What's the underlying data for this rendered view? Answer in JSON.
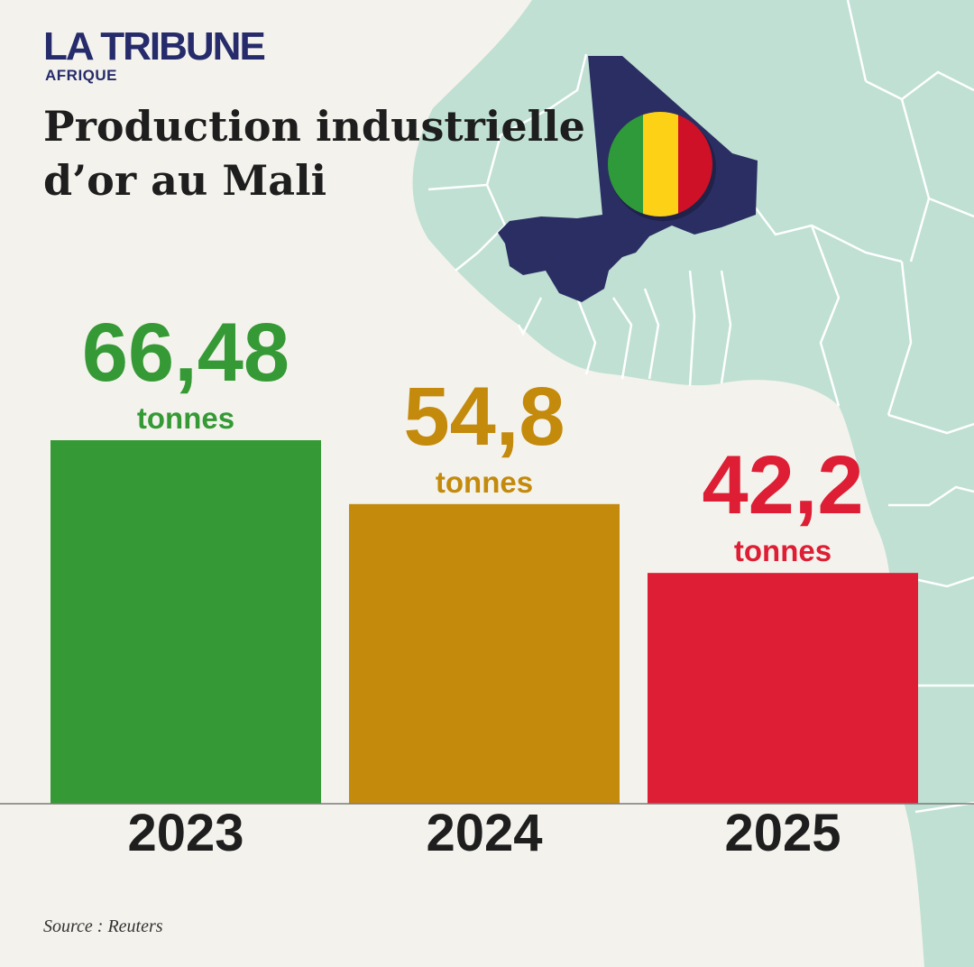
{
  "brand": {
    "name": "LA TRIBUNE",
    "subname": "AFRIQUE",
    "color": "#262b6b"
  },
  "source": "Source : Reuters",
  "colors": {
    "map_land": "#bfe0d3",
    "map_border": "#ffffff",
    "mali": "#2b2e63",
    "flag": [
      "#2f9a3a",
      "#fcd116",
      "#ce1126"
    ],
    "baseline": "#7a7a7a",
    "year_label": "#1e1e1e"
  },
  "chart_data": {
    "type": "bar",
    "title": "Production industrielle d’or au Mali",
    "xlabel": "",
    "ylabel": "",
    "unit": "tonnes",
    "ylim": [
      0,
      66.48
    ],
    "categories": [
      "2023",
      "2024",
      "2025"
    ],
    "values": [
      66.48,
      54.8,
      42.2
    ],
    "value_labels": [
      "66,48",
      "54,8",
      "42,2"
    ],
    "bar_colors": [
      "#359a35",
      "#c38a0c",
      "#dd1e34"
    ]
  }
}
